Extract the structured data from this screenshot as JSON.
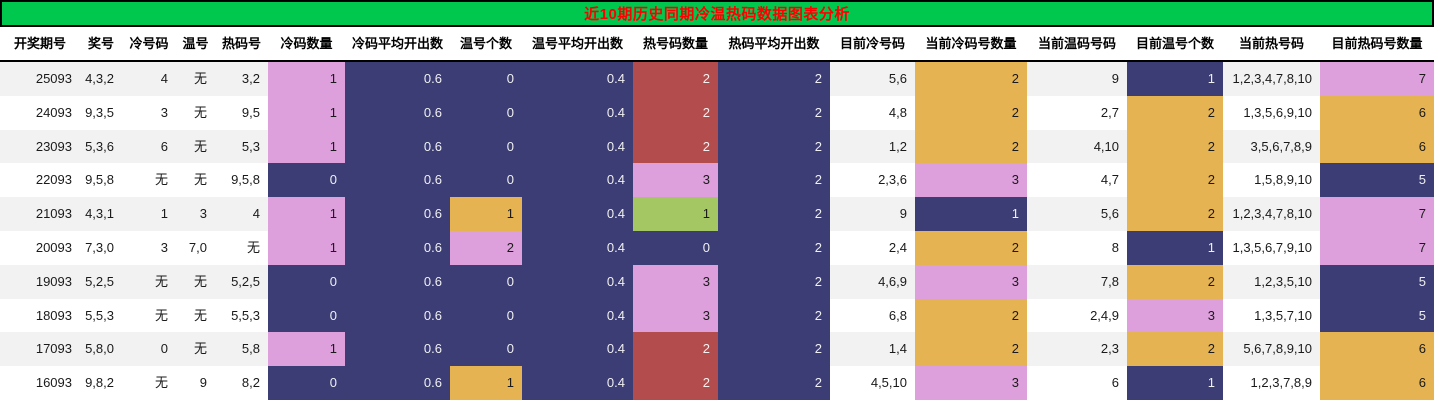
{
  "title": "近10期历史同期冷温热码数据图表分析",
  "colors": {
    "header_bg": "#00C84E",
    "title_text": "#FF0000",
    "pink": "#DDA0DC",
    "dark_blue": "#3D3D75",
    "orange": "#E6B353",
    "red": "#B34D4D",
    "green": "#A4C764",
    "stripe": "#F2F2F2"
  },
  "chart_data": {
    "type": "table",
    "title": "近10期历史同期冷温热码数据图表分析",
    "legend_note": "cell colors encode counts: dark-blue, pink, orange, red, green"
  },
  "table": {
    "columns": [
      {
        "key": "period",
        "label": "开奖期号"
      },
      {
        "key": "prize-numbers",
        "label": "奖号"
      },
      {
        "key": "cold-number",
        "label": "冷号码"
      },
      {
        "key": "warm-number",
        "label": "温号"
      },
      {
        "key": "hot-number",
        "label": "热码号"
      },
      {
        "key": "cold-count",
        "label": "冷码数量"
      },
      {
        "key": "cold-avg",
        "label": "冷码平均开出数"
      },
      {
        "key": "warm-count",
        "label": "温号个数"
      },
      {
        "key": "warm-avg",
        "label": "温号平均开出数"
      },
      {
        "key": "hot-count",
        "label": "热号码数量"
      },
      {
        "key": "hot-avg",
        "label": "热码平均开出数"
      },
      {
        "key": "current-cold",
        "label": "目前冷号码"
      },
      {
        "key": "current-cold-count",
        "label": "当前冷码号数量"
      },
      {
        "key": "current-warm",
        "label": "当前温码号码"
      },
      {
        "key": "current-warm-count",
        "label": "目前温号个数"
      },
      {
        "key": "current-hot",
        "label": "当前热号码"
      },
      {
        "key": "current-hot-count",
        "label": "目前热码号数量"
      }
    ],
    "rows": [
      [
        "25093",
        "4,3,2",
        "4",
        "无",
        "3,2",
        [
          "1",
          "pink"
        ],
        [
          "0.6",
          "dark"
        ],
        [
          "0",
          "dark"
        ],
        [
          "0.4",
          "dark"
        ],
        [
          "2",
          "red"
        ],
        [
          "2",
          "dark"
        ],
        "5,6",
        [
          "2",
          "orange"
        ],
        "9",
        [
          "1",
          "dark"
        ],
        "1,2,3,4,7,8,10",
        [
          "7",
          "pink"
        ]
      ],
      [
        "24093",
        "9,3,5",
        "3",
        "无",
        "9,5",
        [
          "1",
          "pink"
        ],
        [
          "0.6",
          "dark"
        ],
        [
          "0",
          "dark"
        ],
        [
          "0.4",
          "dark"
        ],
        [
          "2",
          "red"
        ],
        [
          "2",
          "dark"
        ],
        "4,8",
        [
          "2",
          "orange"
        ],
        "2,7",
        [
          "2",
          "orange"
        ],
        "1,3,5,6,9,10",
        [
          "6",
          "orange"
        ]
      ],
      [
        "23093",
        "5,3,6",
        "6",
        "无",
        "5,3",
        [
          "1",
          "pink"
        ],
        [
          "0.6",
          "dark"
        ],
        [
          "0",
          "dark"
        ],
        [
          "0.4",
          "dark"
        ],
        [
          "2",
          "red"
        ],
        [
          "2",
          "dark"
        ],
        "1,2",
        [
          "2",
          "orange"
        ],
        "4,10",
        [
          "2",
          "orange"
        ],
        "3,5,6,7,8,9",
        [
          "6",
          "orange"
        ]
      ],
      [
        "22093",
        "9,5,8",
        "无",
        "无",
        "9,5,8",
        [
          "0",
          "dark"
        ],
        [
          "0.6",
          "dark"
        ],
        [
          "0",
          "dark"
        ],
        [
          "0.4",
          "dark"
        ],
        [
          "3",
          "pink"
        ],
        [
          "2",
          "dark"
        ],
        "2,3,6",
        [
          "3",
          "pink"
        ],
        "4,7",
        [
          "2",
          "orange"
        ],
        "1,5,8,9,10",
        [
          "5",
          "dark"
        ]
      ],
      [
        "21093",
        "4,3,1",
        "1",
        "3",
        "4",
        [
          "1",
          "pink"
        ],
        [
          "0.6",
          "dark"
        ],
        [
          "1",
          "orange"
        ],
        [
          "0.4",
          "dark"
        ],
        [
          "1",
          "green"
        ],
        [
          "2",
          "dark"
        ],
        "9",
        [
          "1",
          "dark"
        ],
        "5,6",
        [
          "2",
          "orange"
        ],
        "1,2,3,4,7,8,10",
        [
          "7",
          "pink"
        ]
      ],
      [
        "20093",
        "7,3,0",
        "3",
        "7,0",
        "无",
        [
          "1",
          "pink"
        ],
        [
          "0.6",
          "dark"
        ],
        [
          "2",
          "pink"
        ],
        [
          "0.4",
          "dark"
        ],
        [
          "0",
          "dark"
        ],
        [
          "2",
          "dark"
        ],
        "2,4",
        [
          "2",
          "orange"
        ],
        "8",
        [
          "1",
          "dark"
        ],
        "1,3,5,6,7,9,10",
        [
          "7",
          "pink"
        ]
      ],
      [
        "19093",
        "5,2,5",
        "无",
        "无",
        "5,2,5",
        [
          "0",
          "dark"
        ],
        [
          "0.6",
          "dark"
        ],
        [
          "0",
          "dark"
        ],
        [
          "0.4",
          "dark"
        ],
        [
          "3",
          "pink"
        ],
        [
          "2",
          "dark"
        ],
        "4,6,9",
        [
          "3",
          "pink"
        ],
        "7,8",
        [
          "2",
          "orange"
        ],
        "1,2,3,5,10",
        [
          "5",
          "dark"
        ]
      ],
      [
        "18093",
        "5,5,3",
        "无",
        "无",
        "5,5,3",
        [
          "0",
          "dark"
        ],
        [
          "0.6",
          "dark"
        ],
        [
          "0",
          "dark"
        ],
        [
          "0.4",
          "dark"
        ],
        [
          "3",
          "pink"
        ],
        [
          "2",
          "dark"
        ],
        "6,8",
        [
          "2",
          "orange"
        ],
        "2,4,9",
        [
          "3",
          "pink"
        ],
        "1,3,5,7,10",
        [
          "5",
          "dark"
        ]
      ],
      [
        "17093",
        "5,8,0",
        "0",
        "无",
        "5,8",
        [
          "1",
          "pink"
        ],
        [
          "0.6",
          "dark"
        ],
        [
          "0",
          "dark"
        ],
        [
          "0.4",
          "dark"
        ],
        [
          "2",
          "red"
        ],
        [
          "2",
          "dark"
        ],
        "1,4",
        [
          "2",
          "orange"
        ],
        "2,3",
        [
          "2",
          "orange"
        ],
        "5,6,7,8,9,10",
        [
          "6",
          "orange"
        ]
      ],
      [
        "16093",
        "9,8,2",
        "无",
        "9",
        "8,2",
        [
          "0",
          "dark"
        ],
        [
          "0.6",
          "dark"
        ],
        [
          "1",
          "orange"
        ],
        [
          "0.4",
          "dark"
        ],
        [
          "2",
          "red"
        ],
        [
          "2",
          "dark"
        ],
        "4,5,10",
        [
          "3",
          "pink"
        ],
        "6",
        [
          "1",
          "dark"
        ],
        "1,2,3,7,8,9",
        [
          "6",
          "orange"
        ]
      ]
    ]
  }
}
